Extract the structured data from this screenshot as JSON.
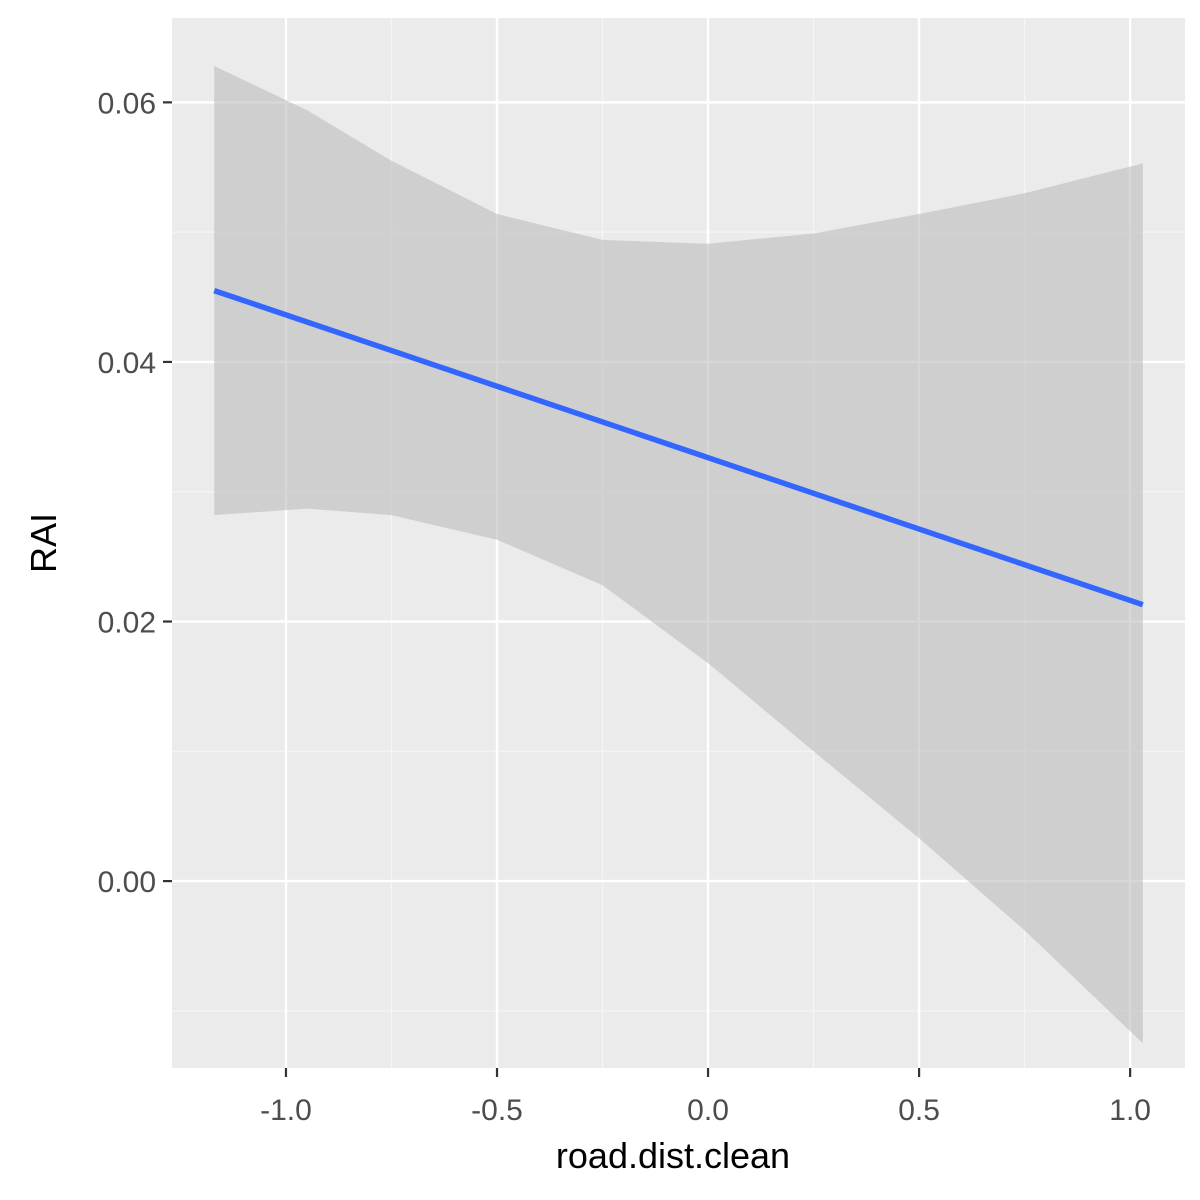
{
  "chart_data": {
    "type": "line",
    "title": "",
    "xlabel": "road.dist.clean",
    "ylabel": "RAI",
    "xlim": [
      -1.27,
      1.13
    ],
    "ylim": [
      -0.0144,
      0.0665
    ],
    "x_ticks": [
      -1.0,
      -0.5,
      0.0,
      0.5,
      1.0
    ],
    "x_tick_labels": [
      "-1.0",
      "-0.5",
      "0.0",
      "0.5",
      "1.0"
    ],
    "y_ticks": [
      0.0,
      0.02,
      0.04,
      0.06
    ],
    "y_tick_labels": [
      "0.00",
      "0.02",
      "0.04",
      "0.06"
    ],
    "x_minor_ticks": [
      -0.75,
      -0.25,
      0.25,
      0.75
    ],
    "y_minor_ticks": [
      -0.01,
      0.01,
      0.03,
      0.05
    ],
    "grid": true,
    "legend": "none",
    "series": [
      {
        "name": "fit",
        "x": [
          -1.17,
          1.03
        ],
        "y": [
          0.0455,
          0.0213
        ]
      }
    ],
    "ribbon": {
      "name": "confidence band",
      "x": [
        -1.17,
        -0.95,
        -0.75,
        -0.5,
        -0.25,
        0.0,
        0.25,
        0.5,
        0.75,
        1.03
      ],
      "upper": [
        0.0628,
        0.0594,
        0.0555,
        0.0514,
        0.0494,
        0.0491,
        0.0499,
        0.0514,
        0.053,
        0.0553
      ],
      "lower": [
        0.0282,
        0.0287,
        0.0282,
        0.0263,
        0.0228,
        0.0168,
        0.01,
        0.0033,
        -0.0038,
        -0.0125
      ]
    },
    "colors": {
      "panel_background": "#ebebeb",
      "grid_major": "#ffffff",
      "grid_minor": "#f5f5f5",
      "line": "#3366ff",
      "ribbon": "#bdbdbd",
      "tick": "#333333"
    }
  }
}
